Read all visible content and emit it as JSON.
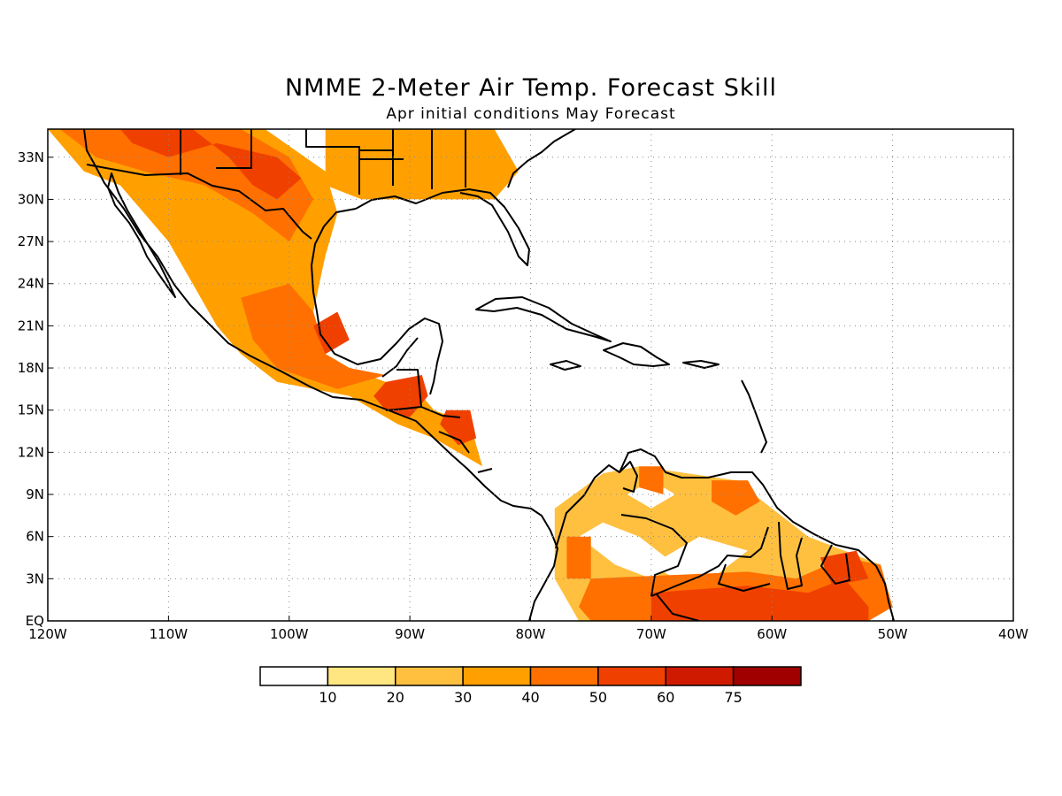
{
  "title": "NMME 2-Meter Air Temp. Forecast Skill",
  "subtitle": "Apr initial conditions   May Forecast",
  "map": {
    "lon_range": [
      -120,
      -40
    ],
    "lat_range": [
      0,
      35
    ],
    "lon_ticks": [
      {
        "value": -120,
        "label": "120W"
      },
      {
        "value": -110,
        "label": "110W"
      },
      {
        "value": -100,
        "label": "100W"
      },
      {
        "value": -90,
        "label": "90W"
      },
      {
        "value": -80,
        "label": "80W"
      },
      {
        "value": -70,
        "label": "70W"
      },
      {
        "value": -60,
        "label": "60W"
      },
      {
        "value": -50,
        "label": "50W"
      },
      {
        "value": -40,
        "label": "40W"
      }
    ],
    "lat_ticks": [
      {
        "value": 0,
        "label": "EQ"
      },
      {
        "value": 3,
        "label": "3N"
      },
      {
        "value": 6,
        "label": "6N"
      },
      {
        "value": 9,
        "label": "9N"
      },
      {
        "value": 12,
        "label": "12N"
      },
      {
        "value": 15,
        "label": "15N"
      },
      {
        "value": 18,
        "label": "18N"
      },
      {
        "value": 21,
        "label": "21N"
      },
      {
        "value": 24,
        "label": "24N"
      },
      {
        "value": 27,
        "label": "27N"
      },
      {
        "value": 30,
        "label": "30N"
      },
      {
        "value": 33,
        "label": "33N"
      }
    ],
    "grid": "dotted"
  },
  "colorbar": {
    "colors": [
      "#ffffff",
      "#ffe680",
      "#ffc040",
      "#ffa000",
      "#ff7000",
      "#f04000",
      "#d01a00",
      "#a00000"
    ],
    "labels": [
      "10",
      "20",
      "30",
      "40",
      "50",
      "60",
      "75"
    ]
  },
  "skill_regions": [
    {
      "level": 3,
      "pts": [
        [
          -120,
          35
        ],
        [
          -102,
          35
        ],
        [
          -97,
          32
        ],
        [
          -96,
          29
        ],
        [
          -97,
          26
        ],
        [
          -98,
          22
        ],
        [
          -97,
          19
        ],
        [
          -95,
          18
        ],
        [
          -92,
          17
        ],
        [
          -90,
          17
        ],
        [
          -89,
          16
        ],
        [
          -88,
          15
        ],
        [
          -85,
          14
        ],
        [
          -84,
          11
        ],
        [
          -86,
          12
        ],
        [
          -88,
          13
        ],
        [
          -91,
          14
        ],
        [
          -95,
          16
        ],
        [
          -101,
          17
        ],
        [
          -104,
          19
        ],
        [
          -106,
          21
        ],
        [
          -108,
          24
        ],
        [
          -110,
          27
        ],
        [
          -112,
          29
        ],
        [
          -114,
          31
        ],
        [
          -117,
          32
        ]
      ]
    },
    {
      "level": 3,
      "pts": [
        [
          -97,
          35
        ],
        [
          -83,
          35
        ],
        [
          -81,
          32
        ],
        [
          -83,
          30
        ],
        [
          -88,
          30
        ],
        [
          -94,
          30
        ],
        [
          -97,
          31
        ]
      ]
    },
    {
      "level": 4,
      "pts": [
        [
          -119,
          35
        ],
        [
          -104,
          35
        ],
        [
          -100,
          33
        ],
        [
          -98,
          30
        ],
        [
          -100,
          27
        ],
        [
          -103,
          29
        ],
        [
          -107,
          31
        ],
        [
          -112,
          32
        ],
        [
          -116,
          33
        ]
      ]
    },
    {
      "level": 4,
      "pts": [
        [
          -104,
          23
        ],
        [
          -100,
          24
        ],
        [
          -98,
          22
        ],
        [
          -97,
          19
        ],
        [
          -95,
          18
        ],
        [
          -92,
          17.5
        ],
        [
          -96,
          16.5
        ],
        [
          -101,
          18
        ],
        [
          -103,
          20
        ]
      ]
    },
    {
      "level": 5,
      "pts": [
        [
          -114,
          35
        ],
        [
          -108,
          35
        ],
        [
          -105,
          33
        ],
        [
          -103,
          31
        ],
        [
          -101,
          30
        ],
        [
          -99,
          31.5
        ],
        [
          -101,
          33
        ],
        [
          -106,
          34
        ],
        [
          -110,
          33
        ],
        [
          -113,
          34
        ]
      ]
    },
    {
      "level": 5,
      "pts": [
        [
          -92,
          17
        ],
        [
          -89,
          17.5
        ],
        [
          -88.5,
          16
        ],
        [
          -90,
          14.5
        ],
        [
          -92,
          15
        ],
        [
          -93,
          16
        ]
      ]
    },
    {
      "level": 5,
      "pts": [
        [
          -87,
          15
        ],
        [
          -85,
          15
        ],
        [
          -84.5,
          13
        ],
        [
          -86,
          12.5
        ],
        [
          -87.5,
          14
        ]
      ]
    },
    {
      "level": 5,
      "pts": [
        [
          -98,
          21
        ],
        [
          -96,
          22
        ],
        [
          -95,
          20
        ],
        [
          -97,
          19
        ]
      ]
    },
    {
      "level": 2,
      "pts": [
        [
          -78,
          8
        ],
        [
          -74,
          10.5
        ],
        [
          -71,
          11
        ],
        [
          -67,
          10.5
        ],
        [
          -63,
          10
        ],
        [
          -60,
          8
        ],
        [
          -57,
          6
        ],
        [
          -54,
          5
        ],
        [
          -51,
          4
        ],
        [
          -50,
          1
        ],
        [
          -52,
          0
        ],
        [
          -76,
          0
        ],
        [
          -78,
          3
        ]
      ]
    },
    {
      "level": 0,
      "pts": [
        [
          -76,
          6
        ],
        [
          -74,
          7
        ],
        [
          -71,
          6
        ],
        [
          -68,
          4
        ],
        [
          -70,
          3
        ],
        [
          -73,
          4
        ]
      ]
    },
    {
      "level": 0,
      "pts": [
        [
          -70,
          4
        ],
        [
          -66,
          6
        ],
        [
          -62,
          5
        ],
        [
          -65,
          3
        ],
        [
          -68,
          3
        ]
      ]
    },
    {
      "level": 0,
      "pts": [
        [
          -72,
          9
        ],
        [
          -70,
          10
        ],
        [
          -68,
          9
        ],
        [
          -70,
          8
        ]
      ]
    },
    {
      "level": 4,
      "pts": [
        [
          -75,
          3
        ],
        [
          -62,
          3.5
        ],
        [
          -58,
          3
        ],
        [
          -54,
          4.5
        ],
        [
          -51,
          4
        ],
        [
          -50,
          1
        ],
        [
          -52,
          0
        ],
        [
          -75,
          0
        ],
        [
          -76,
          1
        ]
      ]
    },
    {
      "level": 5,
      "pts": [
        [
          -70,
          2
        ],
        [
          -62,
          2.5
        ],
        [
          -57,
          2
        ],
        [
          -54,
          3
        ],
        [
          -52,
          1
        ],
        [
          -52,
          0
        ],
        [
          -70,
          0
        ]
      ]
    },
    {
      "level": 5,
      "pts": [
        [
          -56,
          4.5
        ],
        [
          -53,
          5
        ],
        [
          -52,
          3
        ],
        [
          -55,
          2.5
        ]
      ]
    },
    {
      "level": 4,
      "pts": [
        [
          -65,
          10
        ],
        [
          -62,
          10
        ],
        [
          -61,
          8.5
        ],
        [
          -63,
          7.5
        ],
        [
          -65,
          8.5
        ]
      ]
    },
    {
      "level": 4,
      "pts": [
        [
          -71,
          11
        ],
        [
          -69,
          11
        ],
        [
          -69,
          9
        ],
        [
          -71,
          9.5
        ]
      ]
    },
    {
      "level": 4,
      "pts": [
        [
          -77,
          6
        ],
        [
          -75,
          6
        ],
        [
          -75,
          3
        ],
        [
          -77,
          3
        ]
      ]
    }
  ]
}
